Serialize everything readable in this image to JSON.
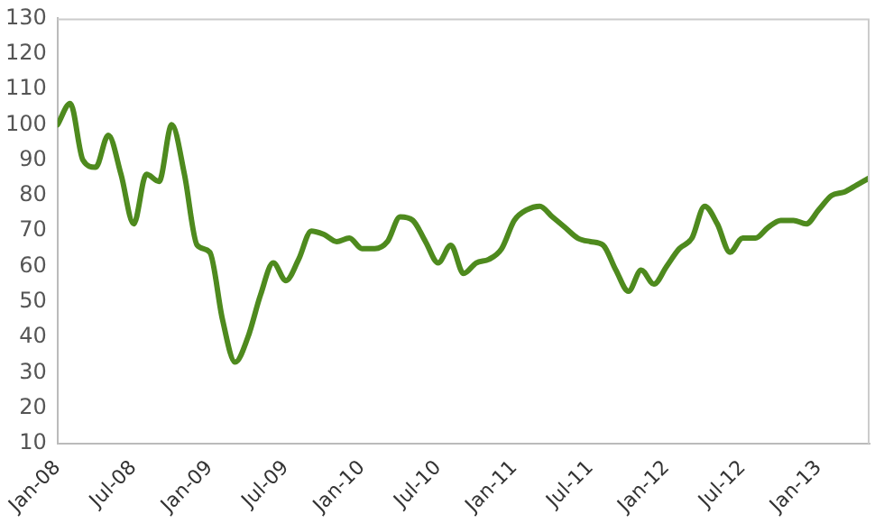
{
  "chart_data": {
    "type": "line",
    "x": [
      "2008-01",
      "2008-02",
      "2008-03",
      "2008-04",
      "2008-05",
      "2008-06",
      "2008-07",
      "2008-08",
      "2008-09",
      "2008-10",
      "2008-11",
      "2008-12",
      "2009-01",
      "2009-02",
      "2009-03",
      "2009-04",
      "2009-05",
      "2009-06",
      "2009-07",
      "2009-08",
      "2009-09",
      "2009-10",
      "2009-11",
      "2009-12",
      "2010-01",
      "2010-02",
      "2010-03",
      "2010-04",
      "2010-05",
      "2010-06",
      "2010-07",
      "2010-08",
      "2010-09",
      "2010-10",
      "2010-11",
      "2010-12",
      "2011-01",
      "2011-02",
      "2011-03",
      "2011-04",
      "2011-05",
      "2011-06",
      "2011-07",
      "2011-08",
      "2011-09",
      "2011-10",
      "2011-11",
      "2011-12",
      "2012-01",
      "2012-02",
      "2012-03",
      "2012-04",
      "2012-05",
      "2012-06",
      "2012-07",
      "2012-08",
      "2012-09",
      "2012-10",
      "2012-11",
      "2012-12",
      "2013-01",
      "2013-02",
      "2013-03",
      "2013-04",
      "2013-05"
    ],
    "series": [
      {
        "color": "#4e8a1e",
        "values": [
          100,
          106,
          90,
          88,
          97,
          86,
          72,
          86,
          84,
          100,
          86,
          66,
          64,
          45,
          33,
          40,
          52,
          61,
          56,
          62,
          70,
          69,
          67,
          68,
          65,
          65,
          67,
          74,
          73,
          67,
          61,
          66,
          58,
          61,
          62,
          65,
          73,
          76,
          77,
          74,
          71,
          68,
          67,
          66,
          59,
          53,
          59,
          55,
          60,
          65,
          68,
          77,
          72,
          64,
          68,
          68,
          71,
          73,
          73,
          72,
          76,
          80,
          81,
          83,
          85
        ]
      }
    ],
    "xlim": [
      "2008-01",
      "2013-05"
    ],
    "xticks": [
      {
        "value": "2008-01",
        "label": "Jan-08"
      },
      {
        "value": "2008-07",
        "label": "Jul-08"
      },
      {
        "value": "2009-01",
        "label": "Jan-09"
      },
      {
        "value": "2009-07",
        "label": "Jul-09"
      },
      {
        "value": "2010-01",
        "label": "Jan-10"
      },
      {
        "value": "2010-07",
        "label": "Jul-10"
      },
      {
        "value": "2011-01",
        "label": "Jan-11"
      },
      {
        "value": "2011-07",
        "label": "Jul-11"
      },
      {
        "value": "2012-01",
        "label": "Jan-12"
      },
      {
        "value": "2012-07",
        "label": "Jul-12"
      },
      {
        "value": "2013-01",
        "label": "Jan-13"
      }
    ],
    "ylim": [
      10,
      130
    ],
    "yticks": [
      10,
      20,
      30,
      40,
      50,
      60,
      70,
      80,
      90,
      100,
      110,
      120,
      130
    ],
    "grid": false,
    "legend": false,
    "marker": "none",
    "line_style": "solid"
  }
}
